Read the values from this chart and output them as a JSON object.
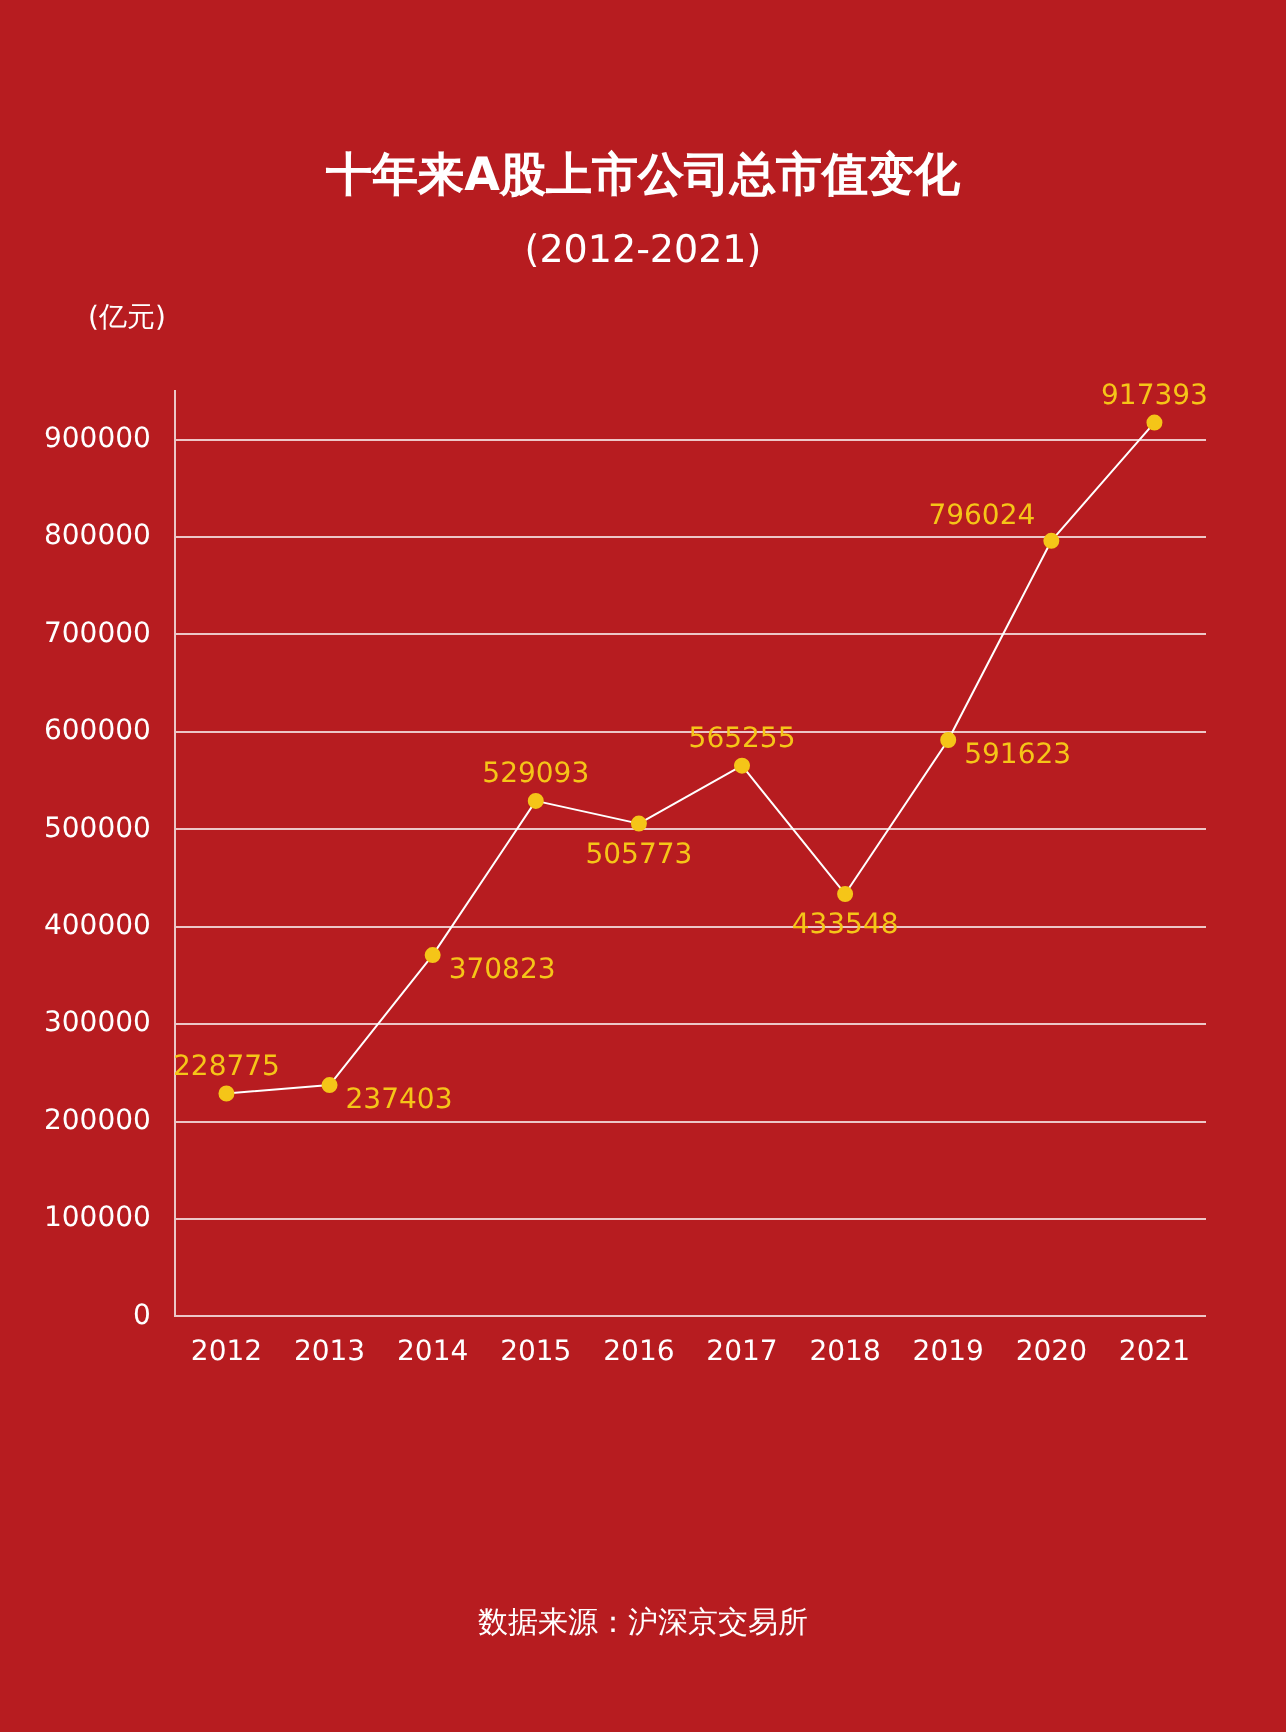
{
  "chart_data": {
    "type": "line",
    "title": "十年来A股上市公司总市值变化",
    "subtitle": "(2012-2021)",
    "ylabel": "(亿元)",
    "categories": [
      "2012",
      "2013",
      "2014",
      "2015",
      "2016",
      "2017",
      "2018",
      "2019",
      "2020",
      "2021"
    ],
    "series": [
      {
        "color": "#ffffff",
        "values": [
          228775,
          237403,
          370823,
          529093,
          505773,
          565255,
          433548,
          591623,
          796024,
          917393
        ]
      }
    ],
    "ylim": [
      0,
      950000
    ],
    "yticks": [
      0,
      100000,
      200000,
      300000,
      400000,
      500000,
      600000,
      700000,
      800000,
      900000
    ],
    "grid": "y",
    "marker": "circle",
    "line_style": "solid",
    "data_labels": true,
    "legend": false,
    "annotations": [
      "数据来源：沪深京交易所"
    ]
  }
}
